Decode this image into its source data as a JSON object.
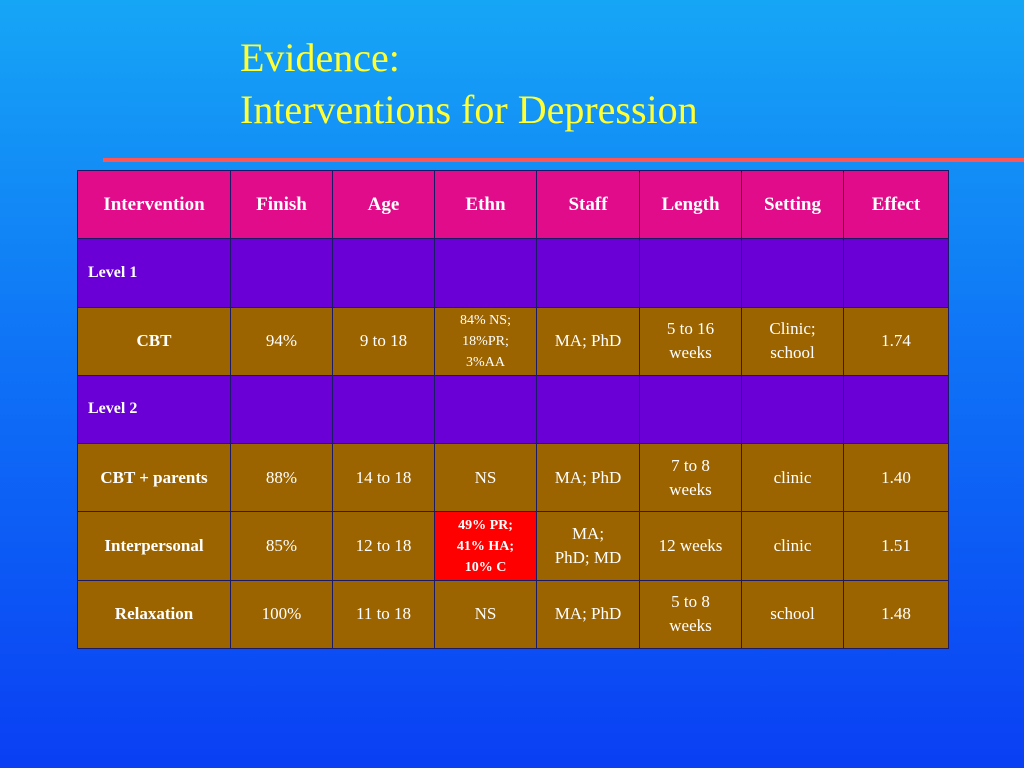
{
  "title": {
    "line1": "Evidence:",
    "line2": "Interventions for Depression"
  },
  "table": {
    "headers": [
      "Intervention",
      "Finish",
      "Age",
      "Ethn",
      "Staff",
      "Length",
      "Setting",
      "Effect"
    ],
    "level1": "Level 1",
    "level2": "Level 2",
    "rows": [
      {
        "intervention": "CBT",
        "finish": "94%",
        "age": "9 to 18",
        "ethn": [
          "84% NS;",
          "18%PR;",
          "3%AA"
        ],
        "staff": [
          "MA; PhD"
        ],
        "length": [
          "5 to 16",
          "weeks"
        ],
        "setting": [
          "Clinic;",
          "school"
        ],
        "effect": "1.74"
      },
      {
        "intervention": "CBT + parents",
        "finish": "88%",
        "age": "14 to 18",
        "ethn": [
          "NS"
        ],
        "staff": [
          "MA; PhD"
        ],
        "length": [
          "7 to 8",
          "weeks"
        ],
        "setting": [
          "clinic"
        ],
        "effect": "1.40"
      },
      {
        "intervention": "Interpersonal",
        "finish": "85%",
        "age": "12 to 18",
        "ethn": [
          "49% PR;",
          "41% HA;",
          "10% C"
        ],
        "staff": [
          "MA;",
          "PhD; MD"
        ],
        "length": [
          "12 weeks"
        ],
        "setting": [
          "clinic"
        ],
        "effect": "1.51"
      },
      {
        "intervention": "Relaxation",
        "finish": "100%",
        "age": "11 to 18",
        "ethn": [
          "NS"
        ],
        "staff": [
          "MA; PhD"
        ],
        "length": [
          "5 to 8",
          "weeks"
        ],
        "setting": [
          "school"
        ],
        "effect": "1.48"
      }
    ]
  },
  "colors": {
    "title_text": "#ffff33",
    "rule": "#ff5555",
    "header_bg": "#e00c8a",
    "level_bg": "#6a00d6",
    "row_bg": "#9b6400",
    "highlight_bg": "#ff0000"
  }
}
